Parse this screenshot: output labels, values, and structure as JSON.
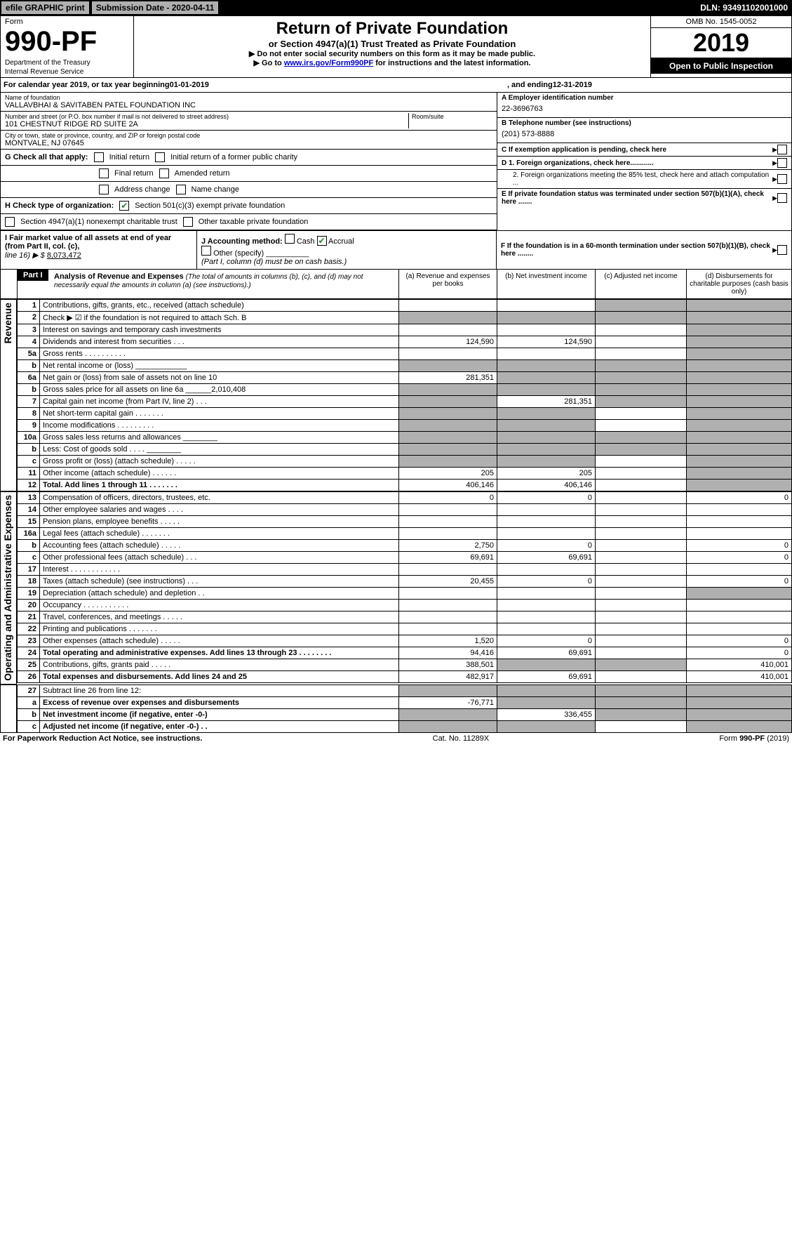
{
  "top": {
    "efile": "efile GRAPHIC print",
    "subdate_label": "Submission Date - 2020-04-11",
    "dln": "DLN: 93491102001000"
  },
  "header": {
    "form_label": "Form",
    "form_num": "990-PF",
    "dept1": "Department of the Treasury",
    "dept2": "Internal Revenue Service",
    "title": "Return of Private Foundation",
    "subtitle": "or Section 4947(a)(1) Trust Treated as Private Foundation",
    "inst1": "▶ Do not enter social security numbers on this form as it may be made public.",
    "inst2_pre": "▶ Go to ",
    "inst2_link": "www.irs.gov/Form990PF",
    "inst2_post": " for instructions and the latest information.",
    "omb": "OMB No. 1545-0052",
    "year": "2019",
    "open": "Open to Public Inspection"
  },
  "calyear": {
    "pre": "For calendar year 2019, or tax year beginning ",
    "begin": "01-01-2019",
    "mid": ", and ending ",
    "end": "12-31-2019"
  },
  "info": {
    "name_label": "Name of foundation",
    "name": "VALLAVBHAI & SAVITABEN PATEL FOUNDATION INC",
    "addr_label": "Number and street (or P.O. box number if mail is not delivered to street address)",
    "addr": "101 CHESTNUT RIDGE RD SUITE 2A",
    "room_label": "Room/suite",
    "city_label": "City or town, state or province, country, and ZIP or foreign postal code",
    "city": "MONTVALE, NJ  07645",
    "a_label": "A Employer identification number",
    "a_val": "22-3696763",
    "b_label": "B Telephone number (see instructions)",
    "b_val": "(201) 573-8888",
    "c_label": "C If exemption application is pending, check here",
    "d1": "D 1. Foreign organizations, check here............",
    "d2": "2. Foreign organizations meeting the 85% test, check here and attach computation ...",
    "e": "E  If private foundation status was terminated under section 507(b)(1)(A), check here .......",
    "f": "F  If the foundation is in a 60-month termination under section 507(b)(1)(B), check here ........"
  },
  "g": {
    "label": "G Check all that apply:",
    "opts": [
      "Initial return",
      "Initial return of a former public charity",
      "Final return",
      "Amended return",
      "Address change",
      "Name change"
    ]
  },
  "h": {
    "label": "H Check type of organization:",
    "opt1": "Section 501(c)(3) exempt private foundation",
    "opt2": "Section 4947(a)(1) nonexempt charitable trust",
    "opt3": "Other taxable private foundation"
  },
  "i": {
    "label": "I Fair market value of all assets at end of year (from Part II, col. (c),",
    "line16": "line 16) ▶ $",
    "val": "8,073,472"
  },
  "j": {
    "label": "J Accounting method:",
    "cash": "Cash",
    "accrual": "Accrual",
    "other": "Other (specify)",
    "note": "(Part I, column (d) must be on cash basis.)"
  },
  "part1": {
    "label": "Part I",
    "title": "Analysis of Revenue and Expenses",
    "note": "(The total of amounts in columns (b), (c), and (d) may not necessarily equal the amounts in column (a) (see instructions).)",
    "col_a": "(a)  Revenue and expenses per books",
    "col_b": "(b)  Net investment income",
    "col_c": "(c)  Adjusted net income",
    "col_d": "(d)  Disbursements for charitable purposes (cash basis only)"
  },
  "sections": {
    "revenue": "Revenue",
    "expenses": "Operating and Administrative Expenses"
  },
  "rows": [
    {
      "n": "1",
      "d": "Contributions, gifts, grants, etc., received (attach schedule)",
      "a": "",
      "b": "",
      "c": "g",
      "dd": "g"
    },
    {
      "n": "2",
      "d": "Check ▶ ☑ if the foundation is not required to attach Sch. B",
      "a": "g",
      "b": "g",
      "c": "g",
      "dd": "g",
      "dots": true
    },
    {
      "n": "3",
      "d": "Interest on savings and temporary cash investments",
      "a": "",
      "b": "",
      "c": "",
      "dd": "g"
    },
    {
      "n": "4",
      "d": "Dividends and interest from securities   .   .   .",
      "a": "124,590",
      "b": "124,590",
      "c": "",
      "dd": "g"
    },
    {
      "n": "5a",
      "d": "Gross rents   .   .   .   .   .   .   .   .   .   .",
      "a": "",
      "b": "",
      "c": "",
      "dd": "g"
    },
    {
      "n": "b",
      "d": "Net rental income or (loss)  ____________",
      "a": "g",
      "b": "g",
      "c": "g",
      "dd": "g"
    },
    {
      "n": "6a",
      "d": "Net gain or (loss) from sale of assets not on line 10",
      "a": "281,351",
      "b": "g",
      "c": "g",
      "dd": "g"
    },
    {
      "n": "b",
      "d": "Gross sales price for all assets on line 6a ______2,010,408",
      "a": "g",
      "b": "g",
      "c": "g",
      "dd": "g"
    },
    {
      "n": "7",
      "d": "Capital gain net income (from Part IV, line 2)   .   .   .",
      "a": "g",
      "b": "281,351",
      "c": "g",
      "dd": "g"
    },
    {
      "n": "8",
      "d": "Net short-term capital gain   .   .   .   .   .   .   .",
      "a": "g",
      "b": "g",
      "c": "",
      "dd": "g"
    },
    {
      "n": "9",
      "d": "Income modifications   .   .   .   .   .   .   .   .   .",
      "a": "g",
      "b": "g",
      "c": "",
      "dd": "g"
    },
    {
      "n": "10a",
      "d": "Gross sales less returns and allowances  ________",
      "a": "g",
      "b": "g",
      "c": "g",
      "dd": "g"
    },
    {
      "n": "b",
      "d": "Less: Cost of goods sold   .   .   .   .  ________",
      "a": "g",
      "b": "g",
      "c": "g",
      "dd": "g"
    },
    {
      "n": "c",
      "d": "Gross profit or (loss) (attach schedule)   .   .   .   .   .",
      "a": "g",
      "b": "g",
      "c": "",
      "dd": "g"
    },
    {
      "n": "11",
      "d": "Other income (attach schedule)   .   .   .   .   .   .",
      "a": "205",
      "b": "205",
      "c": "",
      "dd": "g"
    },
    {
      "n": "12",
      "d": "Total. Add lines 1 through 11   .   .   .   .   .   .   .",
      "a": "406,146",
      "b": "406,146",
      "c": "",
      "dd": "g",
      "bold": true
    }
  ],
  "exp_rows": [
    {
      "n": "13",
      "d": "Compensation of officers, directors, trustees, etc.",
      "a": "0",
      "b": "0",
      "c": "",
      "dd": "0"
    },
    {
      "n": "14",
      "d": "Other employee salaries and wages   .   .   .   .",
      "a": "",
      "b": "",
      "c": "",
      "dd": ""
    },
    {
      "n": "15",
      "d": "Pension plans, employee benefits   .   .   .   .   .",
      "a": "",
      "b": "",
      "c": "",
      "dd": ""
    },
    {
      "n": "16a",
      "d": "Legal fees (attach schedule)   .   .   .   .   .   .   .",
      "a": "",
      "b": "",
      "c": "",
      "dd": ""
    },
    {
      "n": "b",
      "d": "Accounting fees (attach schedule)   .   .   .   .   .",
      "a": "2,750",
      "b": "0",
      "c": "",
      "dd": "0"
    },
    {
      "n": "c",
      "d": "Other professional fees (attach schedule)   .   .   .",
      "a": "69,691",
      "b": "69,691",
      "c": "",
      "dd": "0"
    },
    {
      "n": "17",
      "d": "Interest   .   .   .   .   .   .   .   .   .   .   .   .",
      "a": "",
      "b": "",
      "c": "",
      "dd": ""
    },
    {
      "n": "18",
      "d": "Taxes (attach schedule) (see instructions)   .   .   .",
      "a": "20,455",
      "b": "0",
      "c": "",
      "dd": "0"
    },
    {
      "n": "19",
      "d": "Depreciation (attach schedule) and depletion   .   .",
      "a": "",
      "b": "",
      "c": "",
      "dd": "g"
    },
    {
      "n": "20",
      "d": "Occupancy   .   .   .   .   .   .   .   .   .   .   .",
      "a": "",
      "b": "",
      "c": "",
      "dd": ""
    },
    {
      "n": "21",
      "d": "Travel, conferences, and meetings   .   .   .   .   .",
      "a": "",
      "b": "",
      "c": "",
      "dd": ""
    },
    {
      "n": "22",
      "d": "Printing and publications   .   .   .   .   .   .   .",
      "a": "",
      "b": "",
      "c": "",
      "dd": ""
    },
    {
      "n": "23",
      "d": "Other expenses (attach schedule)   .   .   .   .   .",
      "a": "1,520",
      "b": "0",
      "c": "",
      "dd": "0"
    },
    {
      "n": "24",
      "d": "Total operating and administrative expenses. Add lines 13 through 23   .   .   .   .   .   .   .   .",
      "a": "94,416",
      "b": "69,691",
      "c": "",
      "dd": "0",
      "bold": true
    },
    {
      "n": "25",
      "d": "Contributions, gifts, grants paid   .   .   .   .   .",
      "a": "388,501",
      "b": "g",
      "c": "g",
      "dd": "410,001"
    },
    {
      "n": "26",
      "d": "Total expenses and disbursements. Add lines 24 and 25",
      "a": "482,917",
      "b": "69,691",
      "c": "",
      "dd": "410,001",
      "bold": true
    }
  ],
  "final_rows": [
    {
      "n": "27",
      "d": "Subtract line 26 from line 12:",
      "a": "g",
      "b": "g",
      "c": "g",
      "dd": "g"
    },
    {
      "n": "a",
      "d": "Excess of revenue over expenses and disbursements",
      "a": "-76,771",
      "b": "g",
      "c": "g",
      "dd": "g",
      "bold": true
    },
    {
      "n": "b",
      "d": "Net investment income (if negative, enter -0-)",
      "a": "g",
      "b": "336,455",
      "c": "g",
      "dd": "g",
      "bold": true
    },
    {
      "n": "c",
      "d": "Adjusted net income (if negative, enter -0-)   .   .",
      "a": "g",
      "b": "g",
      "c": "",
      "dd": "g",
      "bold": true
    }
  ],
  "footer": {
    "left": "For Paperwork Reduction Act Notice, see instructions.",
    "mid": "Cat. No. 11289X",
    "right": "Form 990-PF (2019)"
  }
}
